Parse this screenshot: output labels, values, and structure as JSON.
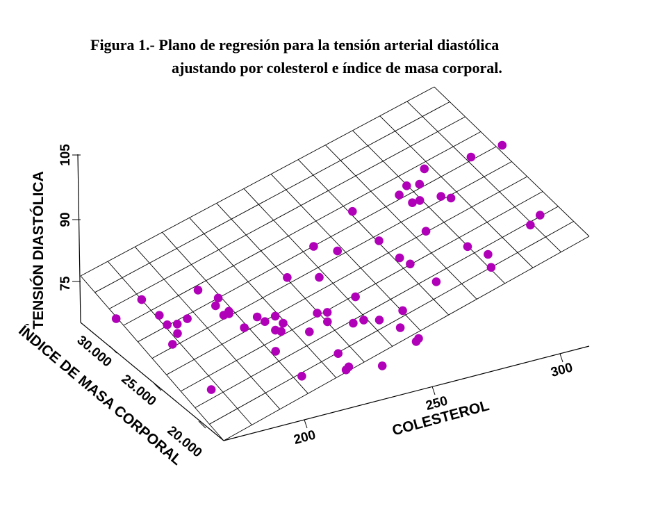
{
  "title": {
    "line1": "Figura 1.- Plano de regresión para la tensión arterial diastólica",
    "line2": "ajustando por colesterol e índice de masa corporal."
  },
  "chart_data": {
    "type": "scatter",
    "subtype": "3d-regression-plane",
    "point_color": "#b000b8",
    "axes": {
      "x": {
        "label": "COLESTEROL",
        "ticks": [
          "200",
          "250",
          "300"
        ],
        "range": [
          190,
          330
        ]
      },
      "y": {
        "label": "ÍNDICE DE MASA CORPORAL",
        "ticks": [
          "20.000",
          "25.000",
          "30.000"
        ],
        "range": [
          18,
          32
        ]
      },
      "z": {
        "label": "TENSIÓN DIASTÓLICA",
        "ticks": [
          "75",
          "90",
          "105"
        ]
      }
    },
    "grid": true,
    "points": [
      {
        "x": 200,
        "y": 31,
        "z": 64
      },
      {
        "x": 203,
        "y": 22.5,
        "z": 56
      },
      {
        "x": 206,
        "y": 30,
        "z": 73
      },
      {
        "x": 210,
        "y": 28,
        "z": 58
      },
      {
        "x": 212,
        "y": 29,
        "z": 63
      },
      {
        "x": 214,
        "y": 28.5,
        "z": 60
      },
      {
        "x": 215,
        "y": 30.5,
        "z": 62
      },
      {
        "x": 218,
        "y": 29.5,
        "z": 60
      },
      {
        "x": 220,
        "y": 28,
        "z": 78
      },
      {
        "x": 222,
        "y": 20.5,
        "z": 80
      },
      {
        "x": 224,
        "y": 26,
        "z": 72
      },
      {
        "x": 224,
        "y": 30,
        "z": 59
      },
      {
        "x": 226,
        "y": 27,
        "z": 68
      },
      {
        "x": 228,
        "y": 27,
        "z": 69
      },
      {
        "x": 230,
        "y": 28.5,
        "z": 70
      },
      {
        "x": 231,
        "y": 29,
        "z": 65
      },
      {
        "x": 232,
        "y": 26.5,
        "z": 62
      },
      {
        "x": 234,
        "y": 24,
        "z": 58
      },
      {
        "x": 235,
        "y": 26,
        "z": 67
      },
      {
        "x": 236,
        "y": 22,
        "z": 52
      },
      {
        "x": 238,
        "y": 25,
        "z": 63
      },
      {
        "x": 238,
        "y": 26,
        "z": 64
      },
      {
        "x": 240,
        "y": 25.5,
        "z": 67
      },
      {
        "x": 241,
        "y": 25,
        "z": 65
      },
      {
        "x": 243,
        "y": 23,
        "z": 66
      },
      {
        "x": 244,
        "y": 22.5,
        "z": 75
      },
      {
        "x": 246,
        "y": 20,
        "z": 58
      },
      {
        "x": 247,
        "y": 20.5,
        "z": 55
      },
      {
        "x": 248,
        "y": 21.5,
        "z": 59
      },
      {
        "x": 250,
        "y": 23,
        "z": 68
      },
      {
        "x": 252,
        "y": 23.5,
        "z": 70
      },
      {
        "x": 253,
        "y": 24.5,
        "z": 82
      },
      {
        "x": 255,
        "y": 28,
        "z": 72
      },
      {
        "x": 257,
        "y": 26,
        "z": 90
      },
      {
        "x": 258,
        "y": 24,
        "z": 93
      },
      {
        "x": 260,
        "y": 23,
        "z": 64
      },
      {
        "x": 262,
        "y": 22.5,
        "z": 66
      },
      {
        "x": 263,
        "y": 21,
        "z": 50
      },
      {
        "x": 265,
        "y": 24,
        "z": 71
      },
      {
        "x": 266,
        "y": 22,
        "z": 66
      },
      {
        "x": 268,
        "y": 25,
        "z": 104
      },
      {
        "x": 270,
        "y": 23,
        "z": 96
      },
      {
        "x": 272,
        "y": 21.5,
        "z": 62
      },
      {
        "x": 274,
        "y": 20.5,
        "z": 58
      },
      {
        "x": 275,
        "y": 22,
        "z": 67
      },
      {
        "x": 277,
        "y": 21,
        "z": 57
      },
      {
        "x": 278,
        "y": 23,
        "z": 86
      },
      {
        "x": 280,
        "y": 22.5,
        "z": 84
      },
      {
        "x": 282,
        "y": 24,
        "z": 109
      },
      {
        "x": 284,
        "y": 22,
        "z": 98
      },
      {
        "x": 285,
        "y": 23.5,
        "z": 106
      },
      {
        "x": 287,
        "y": 24.5,
        "z": 110
      },
      {
        "x": 288,
        "y": 22,
        "z": 75
      },
      {
        "x": 290,
        "y": 24,
        "z": 104
      },
      {
        "x": 292,
        "y": 24.5,
        "z": 109
      },
      {
        "x": 294,
        "y": 23,
        "z": 107
      },
      {
        "x": 296,
        "y": 25,
        "z": 113
      },
      {
        "x": 298,
        "y": 21.5,
        "z": 88
      },
      {
        "x": 300,
        "y": 23.5,
        "z": 103
      },
      {
        "x": 305,
        "y": 21,
        "z": 78
      },
      {
        "x": 308,
        "y": 22,
        "z": 80
      },
      {
        "x": 312,
        "y": 24.5,
        "z": 114
      },
      {
        "x": 318,
        "y": 20.5,
        "z": 93
      },
      {
        "x": 322,
        "y": 24,
        "z": 117
      },
      {
        "x": 326,
        "y": 21.5,
        "z": 92
      }
    ]
  }
}
